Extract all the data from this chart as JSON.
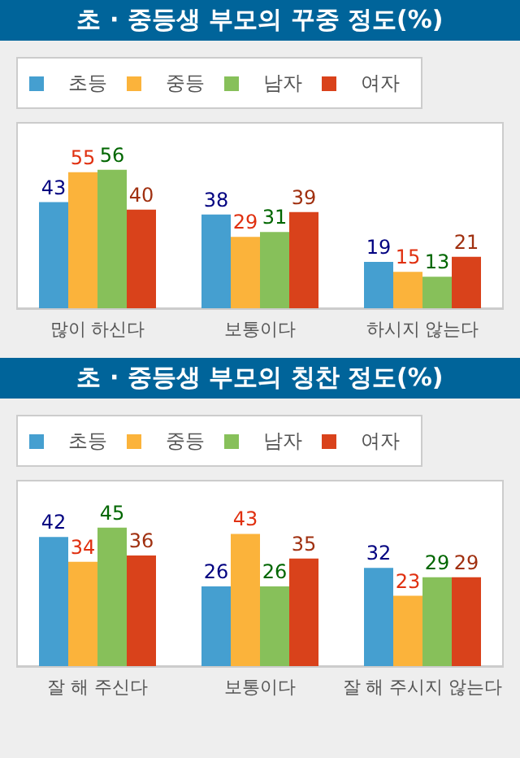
{
  "chart_data": [
    {
      "type": "bar",
      "title": "초 · 중등생 부모의 꾸중 정도(%)",
      "categories": [
        "많이 하신다",
        "보통이다",
        "하시지 않는다"
      ],
      "series": [
        {
          "name": "초등",
          "color": "#459fd0",
          "values": [
            43,
            38,
            19
          ]
        },
        {
          "name": "중등",
          "color": "#fbb33b",
          "values": [
            55,
            29,
            15
          ]
        },
        {
          "name": "남자",
          "color": "#87c05a",
          "values": [
            56,
            31,
            13
          ]
        },
        {
          "name": "여자",
          "color": "#d9421b",
          "values": [
            40,
            39,
            21
          ]
        }
      ],
      "data_labels": true,
      "legend": "top",
      "grid": false,
      "tick_labels": "x"
    },
    {
      "type": "bar",
      "title": "초 · 중등생 부모의 칭찬 정도(%)",
      "categories": [
        "잘 해 주신다",
        "보통이다",
        "잘 해 주시지 않는다"
      ],
      "series": [
        {
          "name": "초등",
          "color": "#459fd0",
          "values": [
            42,
            26,
            32
          ]
        },
        {
          "name": "중등",
          "color": "#fbb33b",
          "values": [
            34,
            43,
            23
          ]
        },
        {
          "name": "남자",
          "color": "#87c05a",
          "values": [
            45,
            26,
            29
          ]
        },
        {
          "name": "여자",
          "color": "#d9421b",
          "values": [
            36,
            35,
            29
          ]
        }
      ],
      "data_labels": true,
      "legend": "top",
      "grid": false,
      "tick_labels": "x"
    }
  ]
}
